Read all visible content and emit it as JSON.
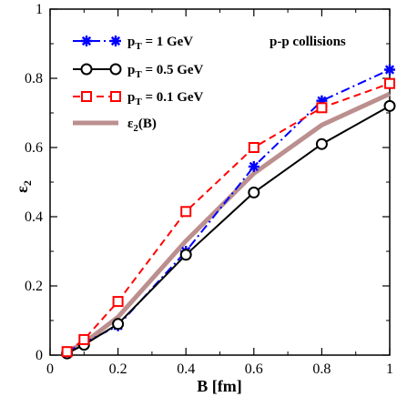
{
  "chart_data": {
    "type": "line",
    "xlabel": "B [fm]",
    "ylabel": "ε2",
    "xlim": [
      0,
      1
    ],
    "ylim": [
      0,
      1
    ],
    "x_ticks": [
      "0",
      "0.2",
      "0.4",
      "0.6",
      "0.8",
      "1"
    ],
    "y_ticks": [
      "0",
      "0.2",
      "0.4",
      "0.6",
      "0.8",
      "1"
    ],
    "annotation": "p-p collisions",
    "legend_placement": "top-left",
    "grid": false,
    "series": [
      {
        "name": "pT = 1 GeV",
        "name_parts": [
          "p",
          "T",
          " = 1 GeV"
        ],
        "color": "#0000ff",
        "marker": "star",
        "dash": "dash-dot",
        "x": [
          0.05,
          0.1,
          0.2,
          0.4,
          0.6,
          0.8,
          1.0
        ],
        "y": [
          0.01,
          0.035,
          0.085,
          0.3,
          0.545,
          0.735,
          0.825
        ]
      },
      {
        "name": "pT = 0.5 GeV",
        "name_parts": [
          "p",
          "T",
          " = 0.5 GeV"
        ],
        "color": "#000000",
        "marker": "circle",
        "dash": "solid",
        "x": [
          0.05,
          0.1,
          0.2,
          0.4,
          0.6,
          0.8,
          1.0
        ],
        "y": [
          0.005,
          0.03,
          0.09,
          0.29,
          0.47,
          0.61,
          0.72
        ]
      },
      {
        "name": "pT = 0.1 GeV",
        "name_parts": [
          "p",
          "T",
          " = 0.1 GeV"
        ],
        "color": "#ff0000",
        "marker": "square",
        "dash": "dashed",
        "x": [
          0.05,
          0.1,
          0.2,
          0.4,
          0.6,
          0.8,
          1.0
        ],
        "y": [
          0.01,
          0.045,
          0.155,
          0.415,
          0.6,
          0.715,
          0.785
        ]
      },
      {
        "name": "ε2(B)",
        "name_parts": [
          "ε",
          "2",
          "(B)"
        ],
        "color": "#bc8f8f",
        "marker": "none",
        "dash": "solid-thick",
        "x": [
          0.05,
          0.1,
          0.2,
          0.4,
          0.6,
          0.8,
          1.0
        ],
        "y": [
          0.01,
          0.035,
          0.11,
          0.33,
          0.525,
          0.665,
          0.755
        ]
      }
    ]
  }
}
